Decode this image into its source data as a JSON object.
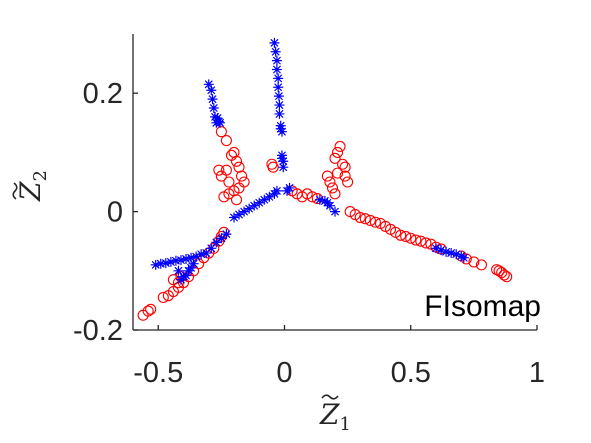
{
  "chart_data": {
    "type": "scatter",
    "title": "",
    "xlabel": "Z",
    "xlabel_sub": "1",
    "ylabel": "Z",
    "ylabel_sub": "2",
    "xlim": [
      -0.6,
      1.0
    ],
    "ylim": [
      -0.2,
      0.3
    ],
    "xticks": [
      -0.5,
      0,
      0.5,
      1
    ],
    "xtick_labels": [
      "-0.5",
      "0",
      "0.5",
      "1"
    ],
    "yticks": [
      -0.2,
      0,
      0.2
    ],
    "ytick_labels": [
      "-0.2",
      "0",
      "0.2"
    ],
    "grid": false,
    "annotation": "FIsomap",
    "series": [
      {
        "marker": "circle",
        "color": "#ff0000",
        "points": [
          [
            -0.56,
            -0.175
          ],
          [
            -0.54,
            -0.168
          ],
          [
            -0.53,
            -0.165
          ],
          [
            -0.48,
            -0.145
          ],
          [
            -0.46,
            -0.142
          ],
          [
            -0.44,
            -0.135
          ],
          [
            -0.42,
            -0.128
          ],
          [
            -0.4,
            -0.12
          ],
          [
            -0.38,
            -0.11
          ],
          [
            -0.36,
            -0.1
          ],
          [
            -0.34,
            -0.088
          ],
          [
            -0.32,
            -0.078
          ],
          [
            -0.3,
            -0.07
          ],
          [
            -0.28,
            -0.062
          ],
          [
            -0.26,
            -0.05
          ],
          [
            -0.25,
            -0.042
          ],
          [
            -0.24,
            -0.035
          ],
          [
            -0.26,
            0.07
          ],
          [
            -0.25,
            0.06
          ],
          [
            -0.23,
            0.07
          ],
          [
            -0.22,
            0.05
          ],
          [
            -0.21,
            0.095
          ],
          [
            -0.2,
            0.1
          ],
          [
            -0.19,
            0.085
          ],
          [
            -0.18,
            0.075
          ],
          [
            -0.17,
            0.06
          ],
          [
            -0.16,
            0.05
          ],
          [
            -0.18,
            0.04
          ],
          [
            -0.2,
            0.035
          ],
          [
            -0.22,
            0.03
          ],
          [
            -0.24,
            0.025
          ],
          [
            -0.23,
            0.12
          ],
          [
            -0.25,
            0.135
          ],
          [
            -0.19,
            0.02
          ],
          [
            -0.05,
            0.08
          ],
          [
            -0.045,
            0.075
          ],
          [
            0.03,
            0.035
          ],
          [
            0.05,
            0.03
          ],
          [
            0.07,
            0.025
          ],
          [
            0.09,
            0.03
          ],
          [
            0.11,
            0.025
          ],
          [
            0.13,
            0.022
          ],
          [
            0.17,
            0.06
          ],
          [
            0.18,
            0.05
          ],
          [
            0.19,
            0.04
          ],
          [
            0.2,
            0.03
          ],
          [
            0.2,
            0.09
          ],
          [
            0.21,
            0.1
          ],
          [
            0.22,
            0.11
          ],
          [
            0.23,
            0.08
          ],
          [
            0.24,
            0.075
          ],
          [
            0.24,
            0.06
          ],
          [
            0.25,
            0.05
          ],
          [
            0.21,
            0.065
          ],
          [
            0.26,
            0.0
          ],
          [
            0.28,
            -0.005
          ],
          [
            0.3,
            -0.01
          ],
          [
            0.32,
            -0.012
          ],
          [
            0.34,
            -0.015
          ],
          [
            0.36,
            -0.018
          ],
          [
            0.38,
            -0.02
          ],
          [
            0.4,
            -0.025
          ],
          [
            0.42,
            -0.03
          ],
          [
            0.44,
            -0.035
          ],
          [
            0.46,
            -0.04
          ],
          [
            0.48,
            -0.042
          ],
          [
            0.5,
            -0.045
          ],
          [
            0.52,
            -0.048
          ],
          [
            0.54,
            -0.05
          ],
          [
            0.56,
            -0.053
          ],
          [
            0.58,
            -0.055
          ],
          [
            0.6,
            -0.06
          ],
          [
            0.62,
            -0.063
          ],
          [
            0.7,
            -0.075
          ],
          [
            0.72,
            -0.08
          ],
          [
            0.75,
            -0.085
          ],
          [
            0.78,
            -0.09
          ],
          [
            0.85,
            -0.1
          ],
          [
            0.86,
            -0.103
          ],
          [
            0.87,
            -0.107
          ],
          [
            0.88,
            -0.11
          ],
          [
            0.84,
            -0.098
          ],
          [
            -0.44,
            -0.115
          ],
          [
            -0.42,
            -0.12
          ],
          [
            -0.41,
            -0.11
          ]
        ]
      },
      {
        "marker": "asterisk",
        "color": "#0000ff",
        "points": [
          [
            -0.51,
            -0.09
          ],
          [
            -0.49,
            -0.088
          ],
          [
            -0.47,
            -0.087
          ],
          [
            -0.45,
            -0.085
          ],
          [
            -0.43,
            -0.083
          ],
          [
            -0.41,
            -0.082
          ],
          [
            -0.39,
            -0.08
          ],
          [
            -0.37,
            -0.078
          ],
          [
            -0.35,
            -0.076
          ],
          [
            -0.33,
            -0.072
          ],
          [
            -0.31,
            -0.07
          ],
          [
            -0.29,
            -0.062
          ],
          [
            -0.27,
            -0.052
          ],
          [
            -0.25,
            -0.045
          ],
          [
            -0.23,
            -0.038
          ],
          [
            -0.42,
            -0.1
          ],
          [
            -0.41,
            -0.115
          ],
          [
            -0.4,
            -0.11
          ],
          [
            -0.39,
            -0.108
          ],
          [
            -0.38,
            -0.1
          ],
          [
            -0.37,
            -0.095
          ],
          [
            -0.36,
            -0.088
          ],
          [
            -0.2,
            -0.01
          ],
          [
            -0.18,
            -0.005
          ],
          [
            -0.16,
            0.0
          ],
          [
            -0.14,
            0.005
          ],
          [
            -0.12,
            0.01
          ],
          [
            -0.1,
            0.015
          ],
          [
            -0.08,
            0.02
          ],
          [
            -0.06,
            0.025
          ],
          [
            -0.04,
            0.03
          ],
          [
            -0.03,
            0.035
          ],
          [
            0.01,
            0.035
          ],
          [
            0.02,
            0.04
          ],
          [
            -0.3,
            0.215
          ],
          [
            -0.29,
            0.205
          ],
          [
            -0.285,
            0.19
          ],
          [
            -0.28,
            0.175
          ],
          [
            -0.275,
            0.16
          ],
          [
            -0.27,
            0.15
          ],
          [
            -0.265,
            0.158
          ],
          [
            -0.26,
            0.152
          ],
          [
            -0.255,
            0.15
          ],
          [
            -0.04,
            0.285
          ],
          [
            -0.035,
            0.27
          ],
          [
            -0.03,
            0.255
          ],
          [
            -0.03,
            0.24
          ],
          [
            -0.025,
            0.225
          ],
          [
            -0.025,
            0.21
          ],
          [
            -0.022,
            0.195
          ],
          [
            -0.02,
            0.18
          ],
          [
            -0.02,
            0.165
          ],
          [
            -0.015,
            0.145
          ],
          [
            -0.015,
            0.14
          ],
          [
            -0.01,
            0.135
          ],
          [
            -0.01,
            0.095
          ],
          [
            -0.01,
            0.09
          ],
          [
            -0.005,
            0.085
          ],
          [
            -0.005,
            0.075
          ],
          [
            0.14,
            0.02
          ],
          [
            0.16,
            0.018
          ],
          [
            0.17,
            0.015
          ],
          [
            0.18,
            0.01
          ],
          [
            0.2,
            0.0
          ],
          [
            0.6,
            -0.062
          ],
          [
            0.62,
            -0.065
          ],
          [
            0.64,
            -0.068
          ],
          [
            0.66,
            -0.07
          ],
          [
            0.68,
            -0.072
          ],
          [
            0.7,
            -0.075
          ],
          [
            0.71,
            -0.078
          ]
        ]
      }
    ]
  }
}
